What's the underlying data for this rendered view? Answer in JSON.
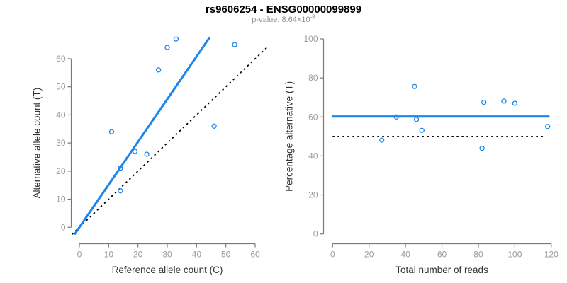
{
  "header": {
    "title": "rs9606254 - ENSG00000099899",
    "subtitle_prefix": "p-value: 8.64×10",
    "p_value_exponent": "-8"
  },
  "colors": {
    "accent": "#1c86ee",
    "axis": "#7a7a7a",
    "tick_label": "#9b9b9b",
    "axis_label": "#333333",
    "reference": "#000000"
  },
  "chart_data": [
    {
      "type": "scatter",
      "title": "",
      "xlabel": "Reference allele count (C)",
      "ylabel": "Alternative allele count (T)",
      "xlim": [
        0,
        60
      ],
      "ylim": [
        0,
        60
      ],
      "xticks": [
        0,
        10,
        20,
        30,
        40,
        50,
        60
      ],
      "yticks": [
        0,
        10,
        20,
        30,
        40,
        50,
        60
      ],
      "grid": false,
      "legend": "none",
      "points": [
        [
          11,
          34
        ],
        [
          14,
          21
        ],
        [
          14,
          13
        ],
        [
          19,
          27
        ],
        [
          23,
          26
        ],
        [
          27,
          56
        ],
        [
          30,
          64
        ],
        [
          33,
          67
        ],
        [
          46,
          36
        ],
        [
          53,
          65
        ]
      ],
      "fit_line": {
        "slope": 1.52,
        "intercept": 0,
        "x_range": [
          -1.5,
          44.2
        ],
        "style": "solid"
      },
      "reference_line": {
        "slope": 1,
        "intercept": 0,
        "x_range": [
          -2.5,
          64.5
        ],
        "style": "dotted"
      }
    },
    {
      "type": "scatter",
      "title": "",
      "xlabel": "Total number of reads",
      "ylabel": "Percentage alternative (T)",
      "xlim": [
        0,
        120
      ],
      "ylim": [
        0,
        100
      ],
      "xticks": [
        0,
        20,
        40,
        60,
        80,
        100,
        120
      ],
      "yticks": [
        0,
        20,
        40,
        60,
        80,
        100
      ],
      "grid": false,
      "legend": "none",
      "points": [
        [
          27,
          48.1
        ],
        [
          35,
          60
        ],
        [
          45,
          75.6
        ],
        [
          46,
          58.7
        ],
        [
          49,
          53.1
        ],
        [
          82,
          43.9
        ],
        [
          83,
          67.5
        ],
        [
          94,
          68.1
        ],
        [
          100,
          67
        ],
        [
          118,
          55.1
        ]
      ],
      "fit_line": {
        "y": 60.2,
        "x_range": [
          0,
          118.5
        ],
        "style": "solid"
      },
      "reference_line": {
        "y": 50,
        "x_range": [
          0,
          116
        ],
        "style": "dotted"
      }
    }
  ]
}
